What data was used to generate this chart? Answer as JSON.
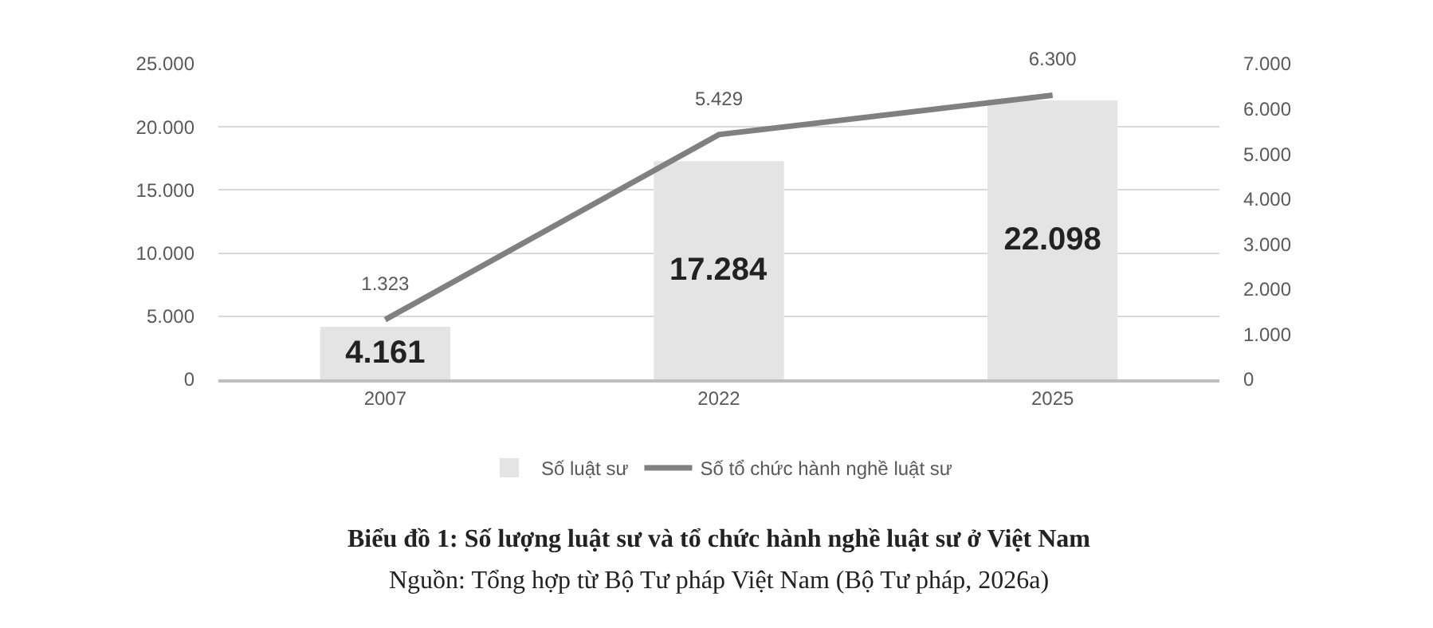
{
  "chart_data": {
    "type": "bar",
    "categories": [
      "2007",
      "2022",
      "2025"
    ],
    "series": [
      {
        "name": "Số luật sư",
        "color": "#e4e4e4",
        "values": [
          4161,
          17284,
          22098
        ],
        "value_labels": [
          "4.161",
          "17.284",
          "22.098"
        ]
      },
      {
        "name": "Số tổ chức hành nghề luật sư",
        "type": "line",
        "axis": "y2",
        "color": "#808080",
        "values": [
          1323,
          5429,
          6300
        ],
        "value_labels": [
          "1.323",
          "5.429",
          "6.300"
        ]
      }
    ],
    "ylim": [
      0,
      25000
    ],
    "yticks": [
      0,
      {
        "value": 5000,
        "label": "5.000"
      },
      {
        "value": 10000,
        "label": "10.000"
      },
      {
        "value": 15000,
        "label": "15.000"
      },
      {
        "value": 20000,
        "label": "20.000"
      },
      {
        "value": 25000,
        "label": "25.000"
      }
    ],
    "y2lim": [
      0,
      7000
    ],
    "y2ticks": [
      0,
      {
        "value": 1000,
        "label": "1.000"
      },
      {
        "value": 2000,
        "label": "2.000"
      },
      {
        "value": 3000,
        "label": "3.000"
      },
      {
        "value": 4000,
        "label": "4.000"
      },
      {
        "value": 5000,
        "label": "5.000"
      },
      {
        "value": 6000,
        "label": "6.000"
      },
      {
        "value": 7000,
        "label": "7.000"
      }
    ],
    "grid": "y",
    "legend": "bottom",
    "marker": "none",
    "line_style": "solid",
    "annotations": [
      "Biểu đồ 1: Số lượng luật sư và tổ chức hành nghề luật sư ở Việt Nam",
      "Nguồn: Tổng hợp từ Bộ Tư pháp Việt Nam (Bộ Tư pháp, 2026a)"
    ]
  }
}
